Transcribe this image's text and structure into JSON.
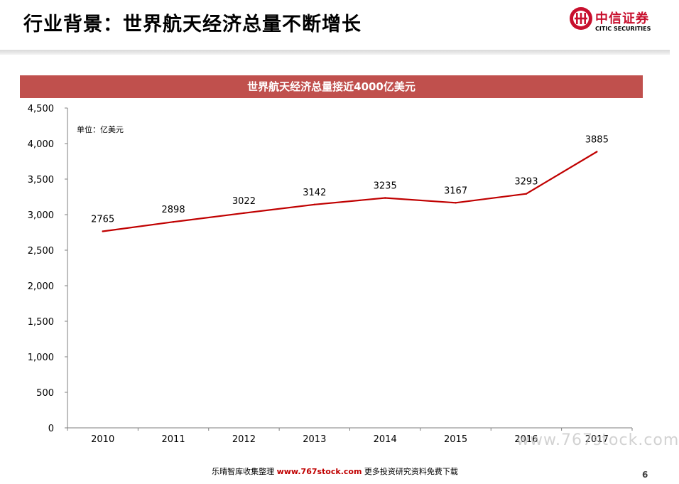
{
  "header": {
    "title": "行业背景：世界航天经济总量不断增长",
    "logo_cn": "中信证券",
    "logo_en": "CITIC SECURITIES"
  },
  "banner": {
    "title": "世界航天经济总量接近4000亿美元"
  },
  "chart_data": {
    "type": "line",
    "title": "世界航天经济总量接近4000亿美元",
    "unit_label": "单位：亿美元",
    "categories": [
      "2010",
      "2011",
      "2012",
      "2013",
      "2014",
      "2015",
      "2016",
      "2017"
    ],
    "series": [
      {
        "values": [
          2765,
          2898,
          3022,
          3142,
          3235,
          3167,
          3293,
          3885
        ],
        "color": "#c00000"
      }
    ],
    "data_labels": [
      "2765",
      "2898",
      "3022",
      "3142",
      "3235",
      "3167",
      "3293",
      "3885"
    ],
    "ylim": [
      0,
      4500
    ],
    "yticks": [
      0,
      500,
      1000,
      1500,
      2000,
      2500,
      3000,
      3500,
      4000,
      4500
    ],
    "ytick_labels": [
      "0",
      "500",
      "1,000",
      "1,500",
      "2,000",
      "2,500",
      "3,000",
      "3,500",
      "4,000",
      "4,500"
    ],
    "grid": false,
    "legend": "none"
  },
  "watermark": "www.767stock.com",
  "footer": {
    "prefix": "乐晴智库收集整理",
    "site": "www.767stock.com",
    "suffix": "更多投资研究资料免费下载"
  },
  "page_number": "6"
}
